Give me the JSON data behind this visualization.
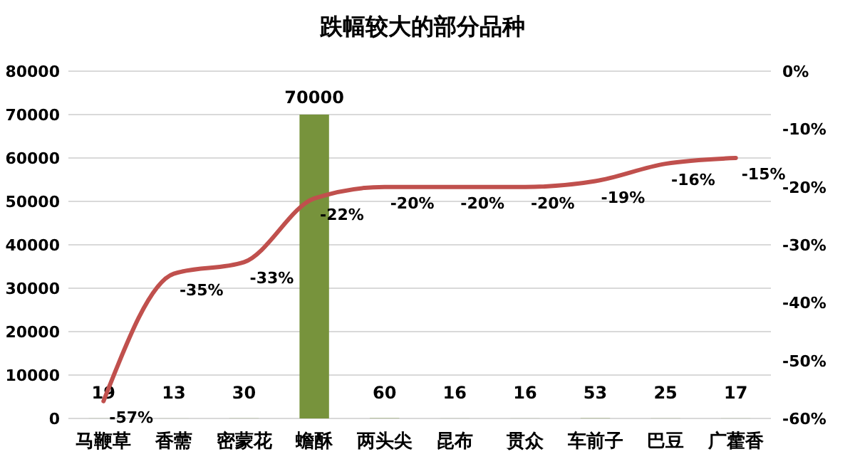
{
  "chart_data": {
    "type": "bar",
    "title": "跌幅较大的部分品种",
    "categories": [
      "马鞭草",
      "香薷",
      "密蒙花",
      "蟾酥",
      "两头尖",
      "昆布",
      "贯众",
      "车前子",
      "巴豆",
      "广藿香"
    ],
    "series": [
      {
        "color": "#77933c",
        "values": [
          19,
          13,
          30,
          70000,
          60,
          16,
          16,
          53,
          25,
          17
        ],
        "value_labels": [
          "19",
          "13",
          "30",
          "70000",
          "60",
          "16",
          "16",
          "53",
          "25",
          "17"
        ]
      },
      {
        "type": "line",
        "axis": "y2",
        "color": "#c0504d",
        "values": [
          -57,
          -35,
          -33,
          -22,
          -20,
          -20,
          -20,
          -19,
          -16,
          -15
        ],
        "value_labels": [
          "-57%",
          "-35%",
          "-33%",
          "-22%",
          "-20%",
          "-20%",
          "-20%",
          "-19%",
          "-16%",
          "-15%"
        ]
      }
    ],
    "ylim": [
      0,
      80000
    ],
    "yticks": [
      0,
      10000,
      20000,
      30000,
      40000,
      50000,
      60000,
      70000,
      80000
    ],
    "y2lim": [
      -60,
      0
    ],
    "y2ticks": [
      {
        "value": -60,
        "label": "-60%"
      },
      {
        "value": -50,
        "label": "-50%"
      },
      {
        "value": -40,
        "label": "-40%"
      },
      {
        "value": -30,
        "label": "-30%"
      },
      {
        "value": -20,
        "label": "-20%"
      },
      {
        "value": -10,
        "label": "-10%"
      },
      {
        "value": 0,
        "label": "0%"
      }
    ],
    "grid": "y",
    "marker": "none",
    "line_style": "solid"
  }
}
